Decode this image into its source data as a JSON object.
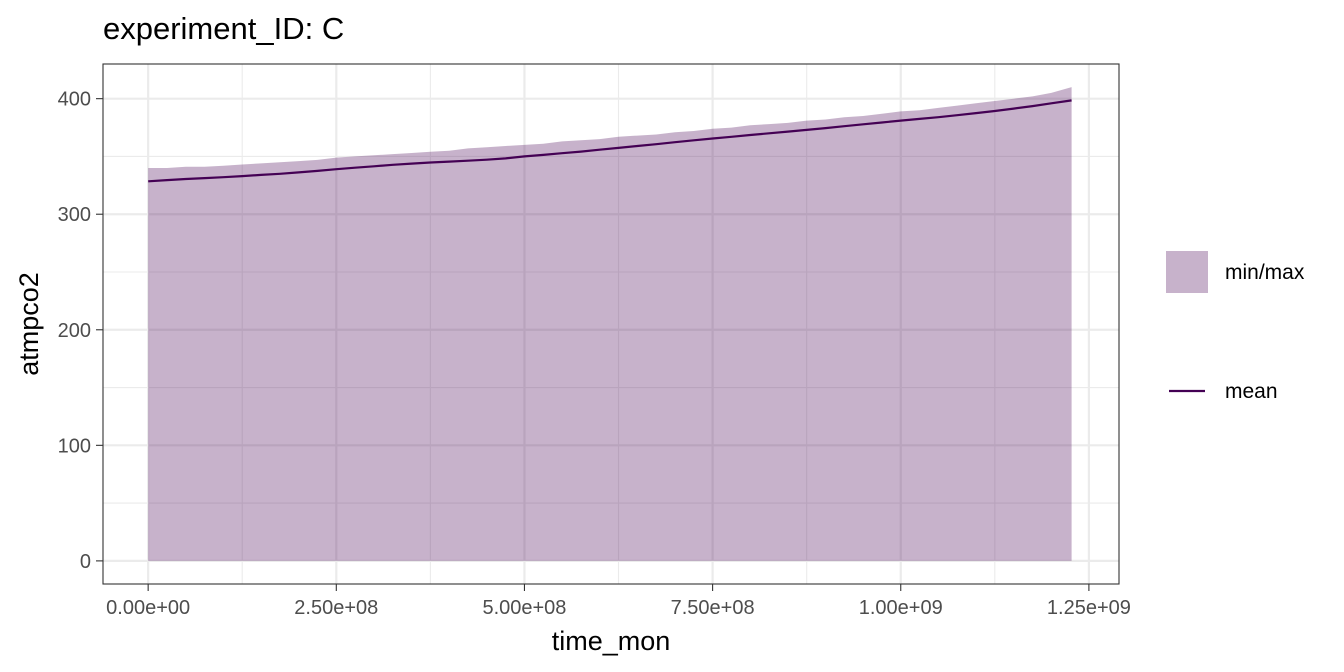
{
  "chart_data": {
    "type": "area",
    "title": "experiment_ID: C",
    "xlabel": "time_mon",
    "ylabel": "atmpco2",
    "xlim": [
      -60000000,
      1290000000
    ],
    "ylim": [
      -20,
      430
    ],
    "x_ticks": [
      0,
      250000000,
      500000000,
      750000000,
      1000000000,
      1250000000
    ],
    "x_tick_labels": [
      "0.00e+00",
      "2.50e+08",
      "5.00e+08",
      "7.50e+08",
      "1.00e+09",
      "1.25e+09"
    ],
    "y_ticks": [
      0,
      100,
      200,
      300,
      400
    ],
    "y_tick_labels": [
      "0",
      "100",
      "200",
      "300",
      "400"
    ],
    "x_minor_ticks": [
      125000000,
      375000000,
      625000000,
      875000000,
      1125000000
    ],
    "y_minor_ticks": [
      50,
      150,
      250,
      350
    ],
    "grid": true,
    "legend_position": "right",
    "colors": {
      "ribbon": "#440154",
      "ribbon_opacity": 0.3,
      "mean_line": "#440154",
      "grid": "#ebebeb",
      "panel_border": "#333333"
    },
    "series": [
      {
        "name": "min/max",
        "kind": "ribbon",
        "x": [
          0,
          25000000,
          50000000,
          75000000,
          100000000,
          125000000,
          150000000,
          175000000,
          200000000,
          225000000,
          250000000,
          275000000,
          300000000,
          325000000,
          350000000,
          375000000,
          400000000,
          425000000,
          450000000,
          475000000,
          500000000,
          525000000,
          550000000,
          575000000,
          600000000,
          625000000,
          650000000,
          675000000,
          700000000,
          725000000,
          750000000,
          775000000,
          800000000,
          825000000,
          850000000,
          875000000,
          900000000,
          925000000,
          950000000,
          975000000,
          1000000000,
          1025000000,
          1050000000,
          1075000000,
          1100000000,
          1125000000,
          1150000000,
          1175000000,
          1200000000,
          1227000000
        ],
        "ymin": [
          0,
          0,
          0,
          0,
          0,
          0,
          0,
          0,
          0,
          0,
          0,
          0,
          0,
          0,
          0,
          0,
          0,
          0,
          0,
          0,
          0,
          0,
          0,
          0,
          0,
          0,
          0,
          0,
          0,
          0,
          0,
          0,
          0,
          0,
          0,
          0,
          0,
          0,
          0,
          0,
          0,
          0,
          0,
          0,
          0,
          0,
          0,
          0,
          0,
          0
        ],
        "ymax": [
          340,
          340,
          341,
          341,
          342,
          343,
          344,
          345,
          346,
          347,
          349,
          350,
          351,
          352,
          353,
          354,
          355,
          357,
          358,
          359,
          360,
          361,
          363,
          364,
          365,
          367,
          368,
          369,
          371,
          372,
          374,
          375,
          377,
          378,
          379,
          381,
          382,
          384,
          385,
          387,
          389,
          390,
          392,
          394,
          396,
          398,
          400,
          402,
          405,
          410
        ]
      },
      {
        "name": "mean",
        "kind": "line",
        "x": [
          0,
          25000000,
          50000000,
          75000000,
          100000000,
          125000000,
          150000000,
          175000000,
          200000000,
          225000000,
          250000000,
          275000000,
          300000000,
          325000000,
          350000000,
          375000000,
          400000000,
          425000000,
          450000000,
          475000000,
          500000000,
          525000000,
          550000000,
          575000000,
          600000000,
          625000000,
          650000000,
          675000000,
          700000000,
          725000000,
          750000000,
          775000000,
          800000000,
          825000000,
          850000000,
          875000000,
          900000000,
          925000000,
          950000000,
          975000000,
          1000000000,
          1025000000,
          1050000000,
          1075000000,
          1100000000,
          1125000000,
          1150000000,
          1175000000,
          1200000000,
          1227000000
        ],
        "y": [
          328.5,
          329.5,
          330.5,
          331.3,
          332.0,
          333.0,
          334.0,
          335.0,
          336.2,
          337.5,
          339.0,
          340.3,
          341.5,
          342.8,
          343.8,
          344.8,
          345.5,
          346.3,
          347.2,
          348.3,
          350.0,
          351.3,
          352.8,
          354.2,
          355.8,
          357.4,
          359.0,
          360.6,
          362.3,
          364.0,
          365.5,
          367.0,
          368.6,
          370.0,
          371.5,
          373.0,
          374.5,
          376.2,
          377.8,
          379.4,
          381.0,
          382.5,
          384.0,
          385.7,
          387.5,
          389.3,
          391.4,
          393.6,
          396.0,
          398.5
        ]
      }
    ]
  }
}
